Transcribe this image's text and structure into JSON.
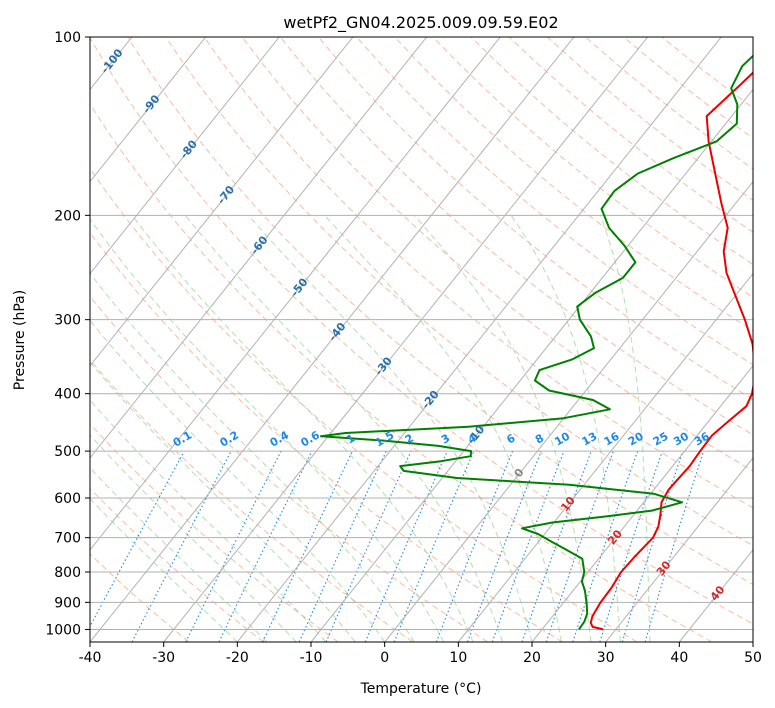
{
  "chart_data": {
    "type": "line",
    "title": "wetPf2_GN04.2025.009.09.59.E02",
    "xlabel": "Temperature (°C)",
    "ylabel": "Pressure (hPa)",
    "xlim": [
      -40,
      50
    ],
    "ylim": [
      1050,
      100
    ],
    "y_scale": "log",
    "grid": true,
    "x_ticks": [
      -40,
      -30,
      -20,
      -10,
      0,
      10,
      20,
      30,
      40,
      50
    ],
    "y_ticks": [
      100,
      200,
      300,
      400,
      500,
      600,
      700,
      800,
      900,
      1000
    ],
    "isotherm_labels": [
      "-100",
      "-90",
      "-80",
      "-70",
      "-60",
      "-50",
      "-40",
      "-30",
      "-20",
      "-10",
      "0",
      "10",
      "20",
      "30",
      "40"
    ],
    "mixing_ratio_labels": [
      "0.1",
      "0.2",
      "0.4",
      "0.6",
      "1",
      "1.5",
      "2",
      "3",
      "4",
      "6",
      "8",
      "10",
      "13",
      "16",
      "20",
      "25",
      "30",
      "36"
    ],
    "colors": {
      "temperature": "#ee0000",
      "dewpoint": "#008000",
      "isotherm_label_cold": "#2a6fa8",
      "isotherm_label_warm": "#d62728",
      "mixing_ratio": "#1e88e5",
      "dry_adiabat": "#f4a582",
      "moist_adiabat": "#a6d8a6",
      "grid": "#b0b0b0"
    },
    "series": [
      {
        "role": "temperature",
        "points": [
          [
            1000,
            28.3
          ],
          [
            990,
            26.6
          ],
          [
            975,
            25.9
          ],
          [
            950,
            25.4
          ],
          [
            900,
            25.0
          ],
          [
            850,
            24.9
          ],
          [
            800,
            24.5
          ],
          [
            750,
            24.7
          ],
          [
            700,
            25.1
          ],
          [
            670,
            24.6
          ],
          [
            640,
            23.6
          ],
          [
            610,
            22.4
          ],
          [
            580,
            22.0
          ],
          [
            560,
            22.1
          ],
          [
            530,
            22.3
          ],
          [
            500,
            22.1
          ],
          [
            470,
            22.0
          ],
          [
            445,
            22.7
          ],
          [
            420,
            23.5
          ],
          [
            400,
            22.9
          ],
          [
            370,
            21.2
          ],
          [
            330,
            17.6
          ],
          [
            300,
            13.9
          ],
          [
            270,
            9.5
          ],
          [
            250,
            6.3
          ],
          [
            230,
            3.6
          ],
          [
            210,
            1.6
          ],
          [
            190,
            -2.1
          ],
          [
            170,
            -6.0
          ],
          [
            150,
            -10.4
          ],
          [
            136,
            -13.4
          ],
          [
            120,
            -12.2
          ],
          [
            108,
            -11.3
          ],
          [
            100,
            -11.2
          ]
        ]
      },
      {
        "role": "dewpoint",
        "points": [
          [
            1000,
            25.0
          ],
          [
            970,
            24.9
          ],
          [
            940,
            24.4
          ],
          [
            900,
            23.1
          ],
          [
            860,
            21.6
          ],
          [
            830,
            20.2
          ],
          [
            800,
            19.5
          ],
          [
            760,
            17.8
          ],
          [
            730,
            14.2
          ],
          [
            710,
            11.6
          ],
          [
            690,
            9.1
          ],
          [
            675,
            6.3
          ],
          [
            660,
            9.8
          ],
          [
            645,
            16.2
          ],
          [
            630,
            22.0
          ],
          [
            610,
            25.2
          ],
          [
            590,
            20.4
          ],
          [
            570,
            8.0
          ],
          [
            555,
            -8.0
          ],
          [
            540,
            -16.0
          ],
          [
            530,
            -17.0
          ],
          [
            520,
            -12.0
          ],
          [
            510,
            -8.5
          ],
          [
            500,
            -9.0
          ],
          [
            490,
            -14.0
          ],
          [
            480,
            -22.0
          ],
          [
            472,
            -31.0
          ],
          [
            466,
            -28.0
          ],
          [
            455,
            -12.0
          ],
          [
            440,
            0.0
          ],
          [
            425,
            5.3
          ],
          [
            410,
            2.0
          ],
          [
            395,
            -5.0
          ],
          [
            380,
            -8.0
          ],
          [
            365,
            -8.5
          ],
          [
            350,
            -5.2
          ],
          [
            335,
            -3.5
          ],
          [
            320,
            -5.2
          ],
          [
            300,
            -8.5
          ],
          [
            285,
            -10.3
          ],
          [
            270,
            -9.3
          ],
          [
            255,
            -7.2
          ],
          [
            240,
            -7.2
          ],
          [
            225,
            -10.5
          ],
          [
            210,
            -14.5
          ],
          [
            195,
            -17.6
          ],
          [
            182,
            -17.8
          ],
          [
            170,
            -16.5
          ],
          [
            160,
            -13.3
          ],
          [
            150,
            -9.3
          ],
          [
            140,
            -8.5
          ],
          [
            130,
            -10.5
          ],
          [
            122,
            -13.1
          ],
          [
            112,
            -14.0
          ],
          [
            100,
            -13.0
          ]
        ]
      }
    ]
  }
}
